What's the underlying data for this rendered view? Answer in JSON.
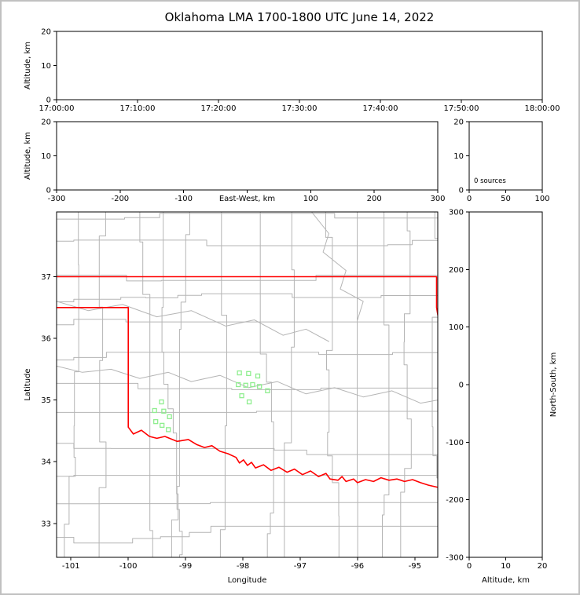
{
  "title": "Oklahoma LMA 1700-1800 UTC June 14, 2022",
  "colors": {
    "background": "#ffffff",
    "frame_border": "#c0c0c0",
    "axis": "#000000",
    "county_lines": "#b5b5b5",
    "state_border": "#ff0000",
    "station_marker": "#90ee90"
  },
  "chart_data": [
    {
      "id": "alt_time",
      "type": "scatter",
      "title": "",
      "xlabel": "",
      "ylabel": "Altitude, km",
      "xlim": [
        0,
        60
      ],
      "ylim": [
        0,
        20
      ],
      "xtick_values": [
        0,
        10,
        20,
        30,
        40,
        50,
        60
      ],
      "xtick_labels": [
        "17:00:00",
        "17:10:00",
        "17:20:00",
        "17:30:00",
        "17:40:00",
        "17:50:00",
        "18:00:00"
      ],
      "ytick_values": [
        0,
        10,
        20
      ],
      "ytick_labels": [
        "0",
        "10",
        "20"
      ],
      "points": []
    },
    {
      "id": "alt_ew",
      "type": "scatter",
      "xlabel": "East-West, km",
      "xlabel_inline": true,
      "xlabel_at": 0,
      "ylabel": "Altitude, km",
      "xlim": [
        -300,
        300
      ],
      "ylim": [
        0,
        20
      ],
      "xtick_values": [
        -300,
        -200,
        -100,
        0,
        100,
        200,
        300
      ],
      "xtick_labels": [
        "-300",
        "-200",
        "-100",
        "",
        "100",
        "200",
        "300"
      ],
      "ytick_values": [
        0,
        10,
        20
      ],
      "ytick_labels": [
        "0",
        "10",
        "20"
      ],
      "points": []
    },
    {
      "id": "src_histogram",
      "type": "line",
      "xlabel": "",
      "ylabel": "",
      "xlim": [
        0,
        100
      ],
      "ylim": [
        0,
        20
      ],
      "xtick_values": [
        0,
        50,
        100
      ],
      "xtick_labels": [
        "0",
        "50",
        "100"
      ],
      "ytick_values": [
        0,
        10,
        20
      ],
      "ytick_labels": [
        "0",
        "10",
        "20"
      ],
      "annotation": "0 sources",
      "points": []
    },
    {
      "id": "map",
      "type": "map",
      "xlabel": "Longitude",
      "ylabel": "Latitude",
      "xlim": [
        -101.25,
        -94.6
      ],
      "ylim": [
        32.45,
        38.05
      ],
      "xtick_values": [
        -101,
        -100,
        -99,
        -98,
        -97,
        -96,
        -95
      ],
      "xtick_labels": [
        "-101",
        "-100",
        "-99",
        "-98",
        "-97",
        "-96",
        "-95"
      ],
      "ytick_values": [
        33,
        34,
        35,
        36,
        37
      ],
      "ytick_labels": [
        "33",
        "34",
        "35",
        "36",
        "37"
      ],
      "stations": [
        [
          -98.06,
          35.44
        ],
        [
          -97.9,
          35.43
        ],
        [
          -97.74,
          35.39
        ],
        [
          -98.08,
          35.25
        ],
        [
          -97.95,
          35.24
        ],
        [
          -97.83,
          35.25
        ],
        [
          -97.71,
          35.22
        ],
        [
          -97.57,
          35.15
        ],
        [
          -98.02,
          35.07
        ],
        [
          -97.89,
          34.97
        ],
        [
          -99.42,
          34.97
        ],
        [
          -99.54,
          34.83
        ],
        [
          -99.38,
          34.82
        ],
        [
          -99.28,
          34.73
        ],
        [
          -99.52,
          34.65
        ],
        [
          -99.41,
          34.59
        ],
        [
          -99.3,
          34.52
        ]
      ],
      "state_border": [
        [
          [
            -101.25,
            37.0
          ],
          [
            -94.62,
            37.0
          ],
          [
            -94.62,
            36.5
          ],
          [
            -94.47,
            35.65
          ],
          [
            -94.44,
            34.9
          ]
        ],
        [
          [
            -101.25,
            36.5
          ],
          [
            -100.0,
            36.5
          ],
          [
            -100.0,
            34.56
          ],
          [
            -99.91,
            34.45
          ],
          [
            -99.77,
            34.51
          ],
          [
            -99.63,
            34.41
          ],
          [
            -99.5,
            34.38
          ],
          [
            -99.36,
            34.41
          ],
          [
            -99.15,
            34.33
          ],
          [
            -98.95,
            34.36
          ],
          [
            -98.81,
            34.28
          ],
          [
            -98.67,
            34.23
          ],
          [
            -98.54,
            34.26
          ],
          [
            -98.4,
            34.17
          ],
          [
            -98.26,
            34.13
          ],
          [
            -98.12,
            34.07
          ],
          [
            -98.06,
            33.98
          ],
          [
            -97.99,
            34.03
          ],
          [
            -97.92,
            33.94
          ],
          [
            -97.85,
            33.99
          ],
          [
            -97.78,
            33.9
          ],
          [
            -97.64,
            33.95
          ],
          [
            -97.51,
            33.86
          ],
          [
            -97.37,
            33.91
          ],
          [
            -97.23,
            33.83
          ],
          [
            -97.1,
            33.88
          ],
          [
            -96.96,
            33.79
          ],
          [
            -96.82,
            33.85
          ],
          [
            -96.68,
            33.76
          ],
          [
            -96.55,
            33.81
          ],
          [
            -96.48,
            33.72
          ],
          [
            -96.34,
            33.7
          ],
          [
            -96.27,
            33.76
          ],
          [
            -96.2,
            33.68
          ],
          [
            -96.07,
            33.72
          ],
          [
            -96.0,
            33.66
          ],
          [
            -95.86,
            33.71
          ],
          [
            -95.72,
            33.68
          ],
          [
            -95.59,
            33.74
          ],
          [
            -95.45,
            33.7
          ],
          [
            -95.31,
            33.72
          ],
          [
            -95.18,
            33.68
          ],
          [
            -95.04,
            33.71
          ],
          [
            -94.9,
            33.66
          ],
          [
            -94.76,
            33.62
          ],
          [
            -94.58,
            33.58
          ]
        ]
      ],
      "rivers": [
        [
          [
            -101.25,
            35.55
          ],
          [
            -100.8,
            35.45
          ],
          [
            -100.3,
            35.5
          ],
          [
            -99.8,
            35.35
          ],
          [
            -99.3,
            35.45
          ],
          [
            -98.9,
            35.3
          ],
          [
            -98.4,
            35.4
          ],
          [
            -97.9,
            35.2
          ],
          [
            -97.4,
            35.3
          ],
          [
            -96.9,
            35.1
          ],
          [
            -96.4,
            35.2
          ],
          [
            -95.9,
            35.05
          ],
          [
            -95.4,
            35.15
          ],
          [
            -94.9,
            34.95
          ],
          [
            -94.6,
            35.0
          ]
        ],
        [
          [
            -101.25,
            36.6
          ],
          [
            -100.7,
            36.45
          ],
          [
            -100.1,
            36.55
          ],
          [
            -99.5,
            36.35
          ],
          [
            -98.9,
            36.45
          ],
          [
            -98.3,
            36.2
          ],
          [
            -97.8,
            36.3
          ],
          [
            -97.3,
            36.05
          ],
          [
            -96.9,
            36.15
          ],
          [
            -96.5,
            35.95
          ]
        ],
        [
          [
            -96.8,
            38.05
          ],
          [
            -96.5,
            37.7
          ],
          [
            -96.6,
            37.4
          ],
          [
            -96.2,
            37.1
          ],
          [
            -96.3,
            36.8
          ],
          [
            -95.9,
            36.6
          ],
          [
            -96.0,
            36.3
          ]
        ]
      ]
    },
    {
      "id": "alt_ns",
      "type": "scatter",
      "xlabel": "Altitude, km",
      "ylabel": "North-South, km",
      "ylabel_side": "right",
      "xlim": [
        0,
        20
      ],
      "ylim": [
        -300,
        300
      ],
      "xtick_values": [
        0,
        10,
        20
      ],
      "xtick_labels": [
        "0",
        "10",
        "20"
      ],
      "ytick_values": [
        -300,
        -200,
        -100,
        0,
        100,
        200,
        300
      ],
      "ytick_labels": [
        "-300",
        "-200",
        "-100",
        "0",
        "100",
        "200",
        "300"
      ],
      "points": []
    }
  ]
}
